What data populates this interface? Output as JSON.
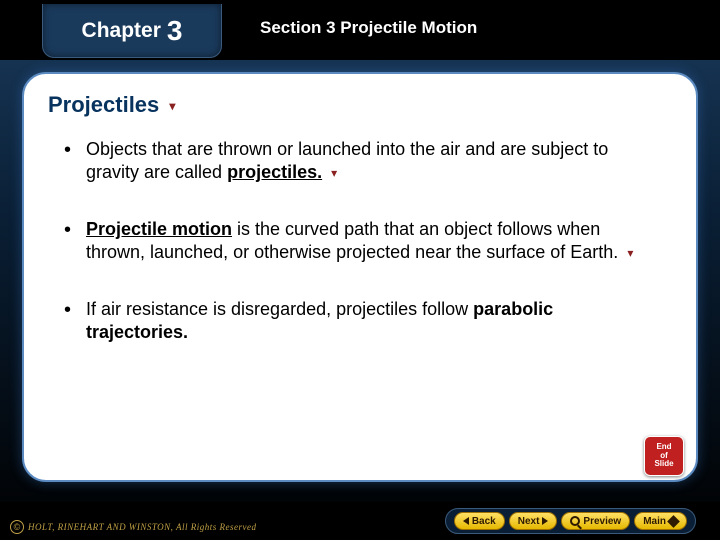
{
  "colors": {
    "card_bg": "#ffffff",
    "title_color": "#07335e",
    "accent_arrow": "#8a2020",
    "nav_btn_bg": "#ffe066",
    "copyright_color": "#bfa046",
    "end_badge_bg": "#c02020"
  },
  "header": {
    "chapter_label": "Chapter",
    "chapter_number": "3",
    "section_title": "Section 3  Projectile Motion"
  },
  "slide": {
    "title": "Projectiles"
  },
  "bullets": [
    {
      "pre": "Objects that are thrown or launched into the air and are subject to gravity are called ",
      "bold_u": "projectiles.",
      "has_arrow": true
    },
    {
      "bold_u_prefix": "Projectile motion",
      "mid": " is the curved path that an object follows when thrown, launched, or otherwise projected near the surface of Earth.",
      "has_arrow": true
    },
    {
      "pre": "If air resistance is disregarded, projectiles follow ",
      "bold_only": "parabolic trajectories.",
      "has_arrow": false
    }
  ],
  "end_badge": {
    "line1": "End",
    "line2": "of",
    "line3": "Slide"
  },
  "nav": {
    "back": "Back",
    "next": "Next",
    "preview": "Preview",
    "main": "Main"
  },
  "footer": {
    "copyright_symbol": "©",
    "copyright_text": "HOLT, RINEHART AND WINSTON, All Rights Reserved"
  }
}
